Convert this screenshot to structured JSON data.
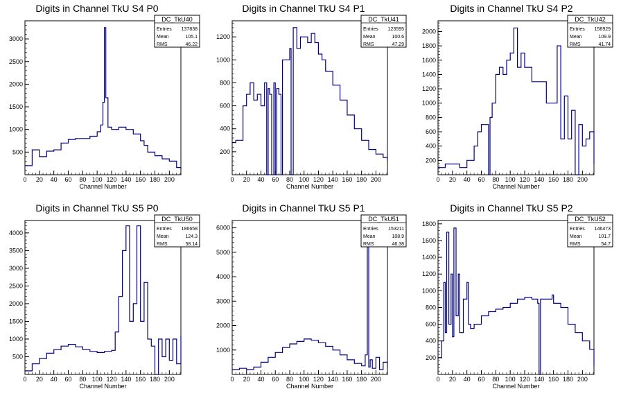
{
  "chart_data": [
    {
      "type": "histogram",
      "title": "Digits in Channel TkU S4 P0",
      "xlabel": "Channel Number",
      "xlim": [
        0,
        216
      ],
      "ylim": [
        0,
        3400
      ],
      "xticks": [
        0,
        20,
        40,
        60,
        80,
        100,
        120,
        140,
        160,
        180,
        200
      ],
      "yticks": [
        500,
        1000,
        1500,
        2000,
        2500,
        3000
      ],
      "stats": {
        "name": "DC_TkU40",
        "entries_label": "Entries",
        "entries": "137838",
        "mean_label": "Mean",
        "mean": "105.1",
        "rms_label": "RMS",
        "rms": "46.22"
      },
      "x": [
        0,
        10,
        20,
        30,
        40,
        50,
        60,
        70,
        80,
        90,
        100,
        105,
        108,
        110,
        112,
        115,
        120,
        130,
        140,
        150,
        160,
        165,
        170,
        180,
        190,
        200,
        210,
        216
      ],
      "values": [
        200,
        550,
        400,
        520,
        550,
        700,
        780,
        800,
        800,
        850,
        950,
        1100,
        1600,
        3250,
        1700,
        1050,
        1000,
        1050,
        1000,
        900,
        750,
        650,
        500,
        420,
        350,
        300,
        160,
        120
      ]
    },
    {
      "type": "histogram",
      "title": "Digits in Channel TkU S4 P1",
      "xlabel": "Channel Number",
      "xlim": [
        0,
        216
      ],
      "ylim": [
        0,
        1340
      ],
      "xticks": [
        0,
        20,
        40,
        60,
        80,
        100,
        120,
        140,
        160,
        180,
        200
      ],
      "yticks": [
        200,
        400,
        600,
        800,
        1000,
        1200
      ],
      "stats": {
        "name": "DC_TkU41",
        "entries_label": "Entries",
        "entries": "123595",
        "mean_label": "Mean",
        "mean": "100.6",
        "rms_label": "RMS",
        "rms": "47.29"
      },
      "x": [
        0,
        5,
        10,
        15,
        20,
        25,
        30,
        35,
        40,
        45,
        48,
        50,
        52,
        55,
        58,
        60,
        62,
        65,
        68,
        70,
        75,
        80,
        82,
        85,
        90,
        95,
        100,
        105,
        110,
        115,
        120,
        125,
        130,
        140,
        150,
        160,
        170,
        180,
        190,
        200,
        210,
        216
      ],
      "values": [
        280,
        300,
        300,
        600,
        700,
        800,
        650,
        700,
        600,
        800,
        0,
        750,
        700,
        0,
        800,
        0,
        750,
        700,
        0,
        1000,
        1000,
        1100,
        0,
        1280,
        1100,
        1200,
        1200,
        1150,
        1230,
        1150,
        1050,
        1000,
        900,
        780,
        650,
        520,
        400,
        300,
        220,
        180,
        150,
        120
      ]
    },
    {
      "type": "histogram",
      "title": "Digits in Channel TkU S4 P2",
      "xlabel": "Channel Number",
      "xlim": [
        0,
        216
      ],
      "ylim": [
        0,
        2150
      ],
      "xticks": [
        0,
        20,
        40,
        60,
        80,
        100,
        120,
        140,
        160,
        180,
        200
      ],
      "yticks": [
        200,
        400,
        600,
        800,
        1000,
        1200,
        1400,
        1600,
        1800,
        2000
      ],
      "stats": {
        "name": "DC_TkU42",
        "entries_label": "Entries",
        "entries": "158929",
        "mean_label": "Mean",
        "mean": "109.9",
        "rms_label": "RMS",
        "rms": "41.74"
      },
      "x": [
        0,
        10,
        20,
        30,
        40,
        50,
        55,
        60,
        65,
        70,
        72,
        75,
        80,
        85,
        90,
        95,
        100,
        105,
        110,
        115,
        120,
        125,
        130,
        140,
        150,
        160,
        165,
        170,
        175,
        180,
        185,
        190,
        195,
        200,
        205,
        210,
        216
      ],
      "values": [
        100,
        150,
        150,
        100,
        200,
        400,
        600,
        700,
        700,
        0,
        800,
        1000,
        1400,
        1500,
        1400,
        1600,
        1700,
        2050,
        1500,
        1700,
        1500,
        1500,
        1300,
        1300,
        1000,
        1000,
        1800,
        500,
        1100,
        500,
        900,
        0,
        700,
        400,
        500,
        600,
        150
      ]
    },
    {
      "type": "histogram",
      "title": "Digits in Channel TkU S5 P0",
      "xlabel": "Channel Number",
      "xlim": [
        0,
        216
      ],
      "ylim": [
        0,
        4350
      ],
      "xticks": [
        0,
        20,
        40,
        60,
        80,
        100,
        120,
        140,
        160,
        180,
        200
      ],
      "yticks": [
        500,
        1000,
        1500,
        2000,
        2500,
        3000,
        3500,
        4000
      ],
      "stats": {
        "name": "DC_TkU50",
        "entries_label": "Entries",
        "entries": "186658",
        "mean_label": "Mean",
        "mean": "124.3",
        "rms_label": "RMS",
        "rms": "58.14"
      },
      "x": [
        0,
        10,
        20,
        30,
        40,
        50,
        60,
        70,
        80,
        90,
        100,
        110,
        120,
        125,
        130,
        135,
        140,
        145,
        150,
        155,
        160,
        165,
        170,
        175,
        180,
        185,
        190,
        195,
        200,
        205,
        210,
        216
      ],
      "values": [
        100,
        300,
        450,
        600,
        700,
        800,
        850,
        780,
        700,
        650,
        620,
        650,
        680,
        1200,
        2200,
        3500,
        4200,
        1500,
        2000,
        4200,
        1500,
        2600,
        1000,
        800,
        0,
        1000,
        500,
        1000,
        400,
        1000,
        300,
        1100
      ]
    },
    {
      "type": "histogram",
      "title": "Digits in Channel TkU S5 P1",
      "xlabel": "Channel Number",
      "xlim": [
        0,
        216
      ],
      "ylim": [
        0,
        6300
      ],
      "xticks": [
        0,
        20,
        40,
        60,
        80,
        100,
        120,
        140,
        160,
        180,
        200
      ],
      "yticks": [
        1000,
        2000,
        3000,
        4000,
        5000,
        6000
      ],
      "stats": {
        "name": "DC_TkU51",
        "entries_label": "Entries",
        "entries": "153211",
        "mean_label": "Mean",
        "mean": "108.9",
        "rms_label": "RMS",
        "rms": "46.38"
      },
      "x": [
        0,
        10,
        20,
        30,
        40,
        50,
        60,
        70,
        80,
        90,
        100,
        110,
        120,
        130,
        140,
        150,
        160,
        170,
        180,
        185,
        188,
        190,
        192,
        195,
        200,
        205,
        210,
        216
      ],
      "values": [
        200,
        250,
        200,
        300,
        500,
        700,
        900,
        1100,
        1250,
        1350,
        1450,
        1400,
        1300,
        1150,
        1000,
        800,
        600,
        450,
        350,
        800,
        5600,
        300,
        600,
        250,
        700,
        200,
        500,
        250
      ]
    },
    {
      "type": "histogram",
      "title": "Digits in Channel TkU S5 P2",
      "xlabel": "Channel Number",
      "xlim": [
        0,
        216
      ],
      "ylim": [
        0,
        1840
      ],
      "xticks": [
        0,
        20,
        40,
        60,
        80,
        100,
        120,
        140,
        160,
        180,
        200
      ],
      "yticks": [
        200,
        400,
        600,
        800,
        1000,
        1200,
        1400,
        1600,
        1800
      ],
      "stats": {
        "name": "DC_TkU52",
        "entries_label": "Entries",
        "entries": "146473",
        "mean_label": "Mean",
        "mean": "101.7",
        "rms_label": "RMS",
        "rms": "54.7"
      },
      "x": [
        0,
        5,
        8,
        10,
        12,
        15,
        18,
        20,
        22,
        25,
        28,
        30,
        35,
        40,
        42,
        45,
        50,
        60,
        70,
        80,
        90,
        100,
        110,
        120,
        130,
        138,
        140,
        142,
        150,
        158,
        160,
        170,
        180,
        190,
        200,
        210,
        216
      ],
      "values": [
        200,
        400,
        1100,
        500,
        1700,
        600,
        1200,
        450,
        1750,
        700,
        1200,
        500,
        900,
        1100,
        600,
        550,
        600,
        700,
        750,
        780,
        800,
        850,
        900,
        920,
        900,
        850,
        0,
        900,
        900,
        950,
        850,
        800,
        600,
        500,
        400,
        300,
        100
      ]
    }
  ]
}
